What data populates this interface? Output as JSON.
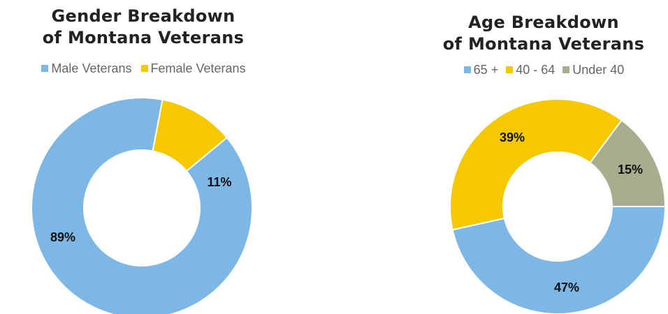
{
  "chart_data": [
    {
      "type": "pie",
      "title_line1": "Gender Breakdown",
      "title_line2": "of Montana Veterans",
      "categories": [
        "Male Veterans",
        "Female Veterans"
      ],
      "values": [
        89,
        11
      ],
      "labels": [
        "89%",
        "11%"
      ],
      "colors": [
        "#7db7e5",
        "#f5c800"
      ],
      "legend": "top"
    },
    {
      "type": "pie",
      "title_line1": "Age Breakdown",
      "title_line2": "of Montana Veterans",
      "categories": [
        "65 +",
        "40 - 64",
        "Under 40"
      ],
      "values": [
        47,
        39,
        15
      ],
      "labels": [
        "47%",
        "39%",
        "15%"
      ],
      "colors": [
        "#7db7e5",
        "#f5c800",
        "#a8ad8e"
      ],
      "legend": "top"
    }
  ]
}
